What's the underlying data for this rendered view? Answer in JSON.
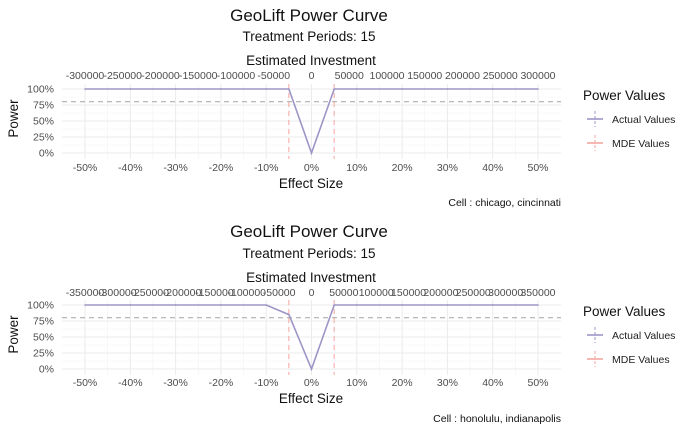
{
  "legend": {
    "title": "Power Values",
    "items": [
      {
        "label": "Actual Values",
        "color": "#9e95c7",
        "style": "solid"
      },
      {
        "label": "MDE Values",
        "color": "#f4a6a0",
        "style": "dashed"
      }
    ]
  },
  "chart_data": [
    {
      "type": "line",
      "title": "GeoLift Power Curve",
      "subtitle": "Treatment Periods: 15",
      "top_axis_title": "Estimated Investment",
      "top_ticks": [
        "-300000",
        "-250000",
        "-200000",
        "-150000",
        "-100000",
        "-50000",
        "0",
        "50000",
        "100000",
        "150000",
        "200000",
        "250000",
        "300000"
      ],
      "top_tick_effects": [
        -0.5,
        -0.4167,
        -0.3333,
        -0.25,
        -0.1667,
        -0.0833,
        0,
        0.0833,
        0.1667,
        0.25,
        0.3333,
        0.4167,
        0.5
      ],
      "xlabel": "Effect Size",
      "ylabel": "Power",
      "xlim": [
        -0.5,
        0.5
      ],
      "ylim": [
        0,
        1
      ],
      "x_ticks": [
        "-50%",
        "-40%",
        "-30%",
        "-20%",
        "-10%",
        "0%",
        "10%",
        "20%",
        "30%",
        "40%",
        "50%"
      ],
      "x_tick_values": [
        -0.5,
        -0.4,
        -0.3,
        -0.2,
        -0.1,
        0,
        0.1,
        0.2,
        0.3,
        0.4,
        0.5
      ],
      "y_ticks": [
        "0%",
        "25%",
        "50%",
        "75%",
        "100%"
      ],
      "y_tick_values": [
        0,
        0.25,
        0.5,
        0.75,
        1.0
      ],
      "reference_power": 0.8,
      "mde_values": [
        -0.05,
        0.05
      ],
      "series": [
        {
          "name": "Actual Values",
          "x": [
            -0.5,
            -0.4,
            -0.3,
            -0.2,
            -0.1,
            -0.05,
            0,
            0.05,
            0.1,
            0.2,
            0.3,
            0.4,
            0.5
          ],
          "y": [
            1,
            1,
            1,
            1,
            1,
            1,
            0,
            1,
            1,
            1,
            1,
            1,
            1
          ]
        }
      ],
      "caption": "Cell : chicago, cincinnati",
      "grid": true
    },
    {
      "type": "line",
      "title": "GeoLift Power Curve",
      "subtitle": "Treatment Periods: 15",
      "top_axis_title": "Estimated Investment",
      "top_ticks": [
        "-350000",
        "-300000",
        "-250000",
        "-200000",
        "-150000",
        "-100000",
        "-50000",
        "0",
        "50000",
        "100000",
        "150000",
        "200000",
        "250000",
        "300000",
        "350000"
      ],
      "top_tick_effects": [
        -0.5,
        -0.4286,
        -0.3571,
        -0.2857,
        -0.2143,
        -0.1429,
        -0.0714,
        0,
        0.0714,
        0.1429,
        0.2143,
        0.2857,
        0.3571,
        0.4286,
        0.5
      ],
      "xlabel": "Effect Size",
      "ylabel": "Power",
      "xlim": [
        -0.5,
        0.5
      ],
      "ylim": [
        0,
        1
      ],
      "x_ticks": [
        "-50%",
        "-40%",
        "-30%",
        "-20%",
        "-10%",
        "0%",
        "10%",
        "20%",
        "30%",
        "40%",
        "50%"
      ],
      "x_tick_values": [
        -0.5,
        -0.4,
        -0.3,
        -0.2,
        -0.1,
        0,
        0.1,
        0.2,
        0.3,
        0.4,
        0.5
      ],
      "y_ticks": [
        "0%",
        "25%",
        "50%",
        "75%",
        "100%"
      ],
      "y_tick_values": [
        0,
        0.25,
        0.5,
        0.75,
        1.0
      ],
      "reference_power": 0.8,
      "mde_values": [
        -0.05,
        0.05
      ],
      "series": [
        {
          "name": "Actual Values",
          "x": [
            -0.5,
            -0.4,
            -0.3,
            -0.2,
            -0.1,
            -0.05,
            0,
            0.05,
            0.1,
            0.2,
            0.3,
            0.4,
            0.5
          ],
          "y": [
            1,
            1,
            1,
            1,
            1,
            0.85,
            0,
            1,
            1,
            1,
            1,
            1,
            1
          ]
        }
      ],
      "caption": "Cell : honolulu, indianapolis",
      "grid": true
    }
  ]
}
